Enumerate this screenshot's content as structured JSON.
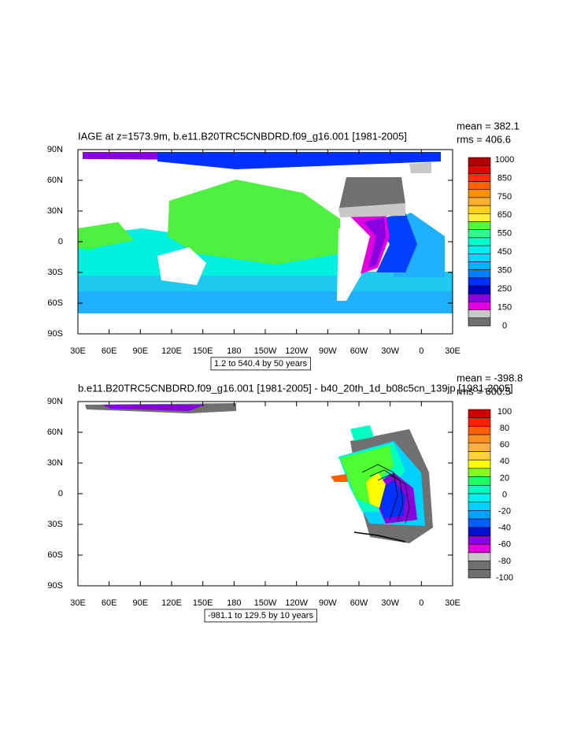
{
  "panels": [
    {
      "title": "IAGE at z=1573.9m, b.e11.B20TRC5CNBDRD.f09_g16.001 [1981-2005]",
      "stats": [
        "mean = 382.1",
        "rms = 406.6"
      ],
      "x_labels": [
        "30E",
        "60E",
        "90E",
        "120E",
        "150E",
        "180",
        "150W",
        "120W",
        "90W",
        "60W",
        "30W",
        "0",
        "30E"
      ],
      "y_labels": [
        "90N",
        "60N",
        "30N",
        "0",
        "30S",
        "60S",
        "90S"
      ],
      "colorbar": {
        "labels": [
          1000,
          850,
          750,
          650,
          550,
          450,
          350,
          250,
          150,
          0
        ],
        "colors": [
          "#b00000",
          "#e00000",
          "#ff3000",
          "#ff6000",
          "#ff9000",
          "#ffb030",
          "#ffd020",
          "#ffee40",
          "#50ff30",
          "#30ff90",
          "#00ffd0",
          "#00f0f0",
          "#00d8ff",
          "#00b0ff",
          "#0080ff",
          "#0030ff",
          "#0000c0",
          "#8800e0",
          "#e000e0",
          "#c8c8c8",
          "#707070"
        ]
      },
      "note": "1.2 to 540.4 by 50 years"
    },
    {
      "title": "b.e11.B20TRC5CNBDRD.f09_g16.001 [1981-2005] - b40_20th_1d_b08c5cn_139jp [1981-2005]",
      "stats": [
        "mean = -398.8",
        "rms = 600.5"
      ],
      "x_labels": [
        "30E",
        "60E",
        "90E",
        "120E",
        "150E",
        "180",
        "150W",
        "120W",
        "90W",
        "60W",
        "30W",
        "0",
        "30E"
      ],
      "y_labels": [
        "90N",
        "60N",
        "30N",
        "0",
        "30S",
        "60S",
        "90S"
      ],
      "colorbar": {
        "labels": [
          100,
          80,
          60,
          40,
          20,
          0,
          -20,
          -40,
          -60,
          -80,
          -100
        ],
        "colors": [
          "#d00000",
          "#ff2000",
          "#ff6000",
          "#ff9020",
          "#ffb040",
          "#ffd040",
          "#ffff00",
          "#80ff20",
          "#20ff60",
          "#00ffc0",
          "#00f0f0",
          "#00d0ff",
          "#00a0ff",
          "#0060ff",
          "#0010d0",
          "#8800e0",
          "#e000e0",
          "#c8c8c8",
          "#707070",
          "#707070"
        ]
      },
      "note": "-981.1 to 129.5 by 10 years"
    }
  ]
}
